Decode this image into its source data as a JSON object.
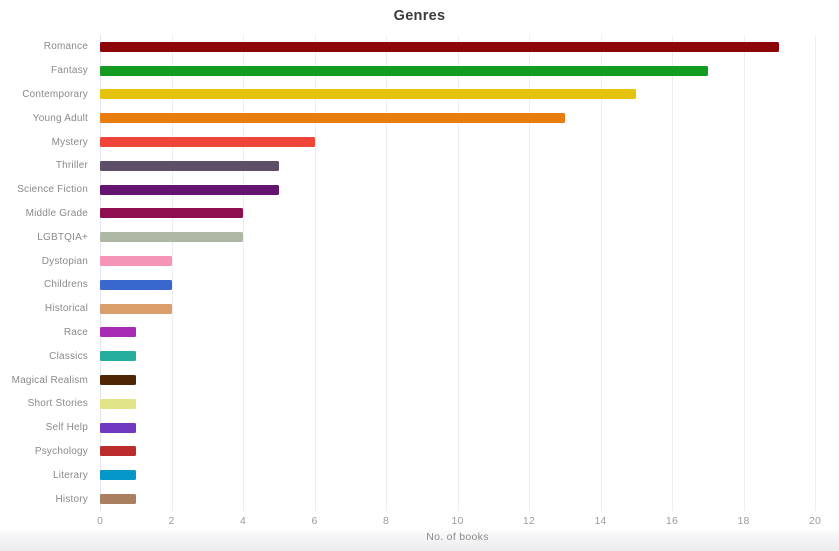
{
  "page": {
    "title": "Genres"
  },
  "chart_data": {
    "type": "bar",
    "orientation": "horizontal",
    "title": "Genres",
    "xlabel": "No. of books",
    "xlim": [
      0,
      20
    ],
    "xticks": [
      0,
      2,
      4,
      6,
      8,
      10,
      12,
      14,
      16,
      18,
      20
    ],
    "grid": true,
    "legend": false,
    "categories": [
      "Romance",
      "Fantasy",
      "Contemporary",
      "Young Adult",
      "Mystery",
      "Thriller",
      "Science Fiction",
      "Middle Grade",
      "LGBTQIA+",
      "Dystopian",
      "Childrens",
      "Historical",
      "Race",
      "Classics",
      "Magical Realism",
      "Short Stories",
      "Self Help",
      "Psychology",
      "Literary",
      "History"
    ],
    "values": [
      19,
      17,
      15,
      13,
      6,
      5,
      5,
      4,
      4,
      2,
      2,
      2,
      1,
      1,
      1,
      1,
      1,
      1,
      1,
      1
    ],
    "colors": [
      "#8B0509",
      "#149B21",
      "#E5C30D",
      "#E87D0E",
      "#F04539",
      "#5D4F67",
      "#641470",
      "#8F0E4F",
      "#AFB8A4",
      "#F594B8",
      "#3A67CD",
      "#D99E6A",
      "#A82BB6",
      "#24AC9C",
      "#4E2605",
      "#E2E488",
      "#7138C2",
      "#BB2C2C",
      "#0497C7",
      "#A97F5F"
    ]
  },
  "theme": {
    "title_color": "#3B3B3B",
    "label_color": "#8A8A8A",
    "tick_color": "#9C9C9C",
    "grid_color": "#EDEDF2",
    "axis_line_color": "#E2E2F0",
    "background": "#FFFFFF",
    "footer_gradient_color": "#ECECEF"
  }
}
